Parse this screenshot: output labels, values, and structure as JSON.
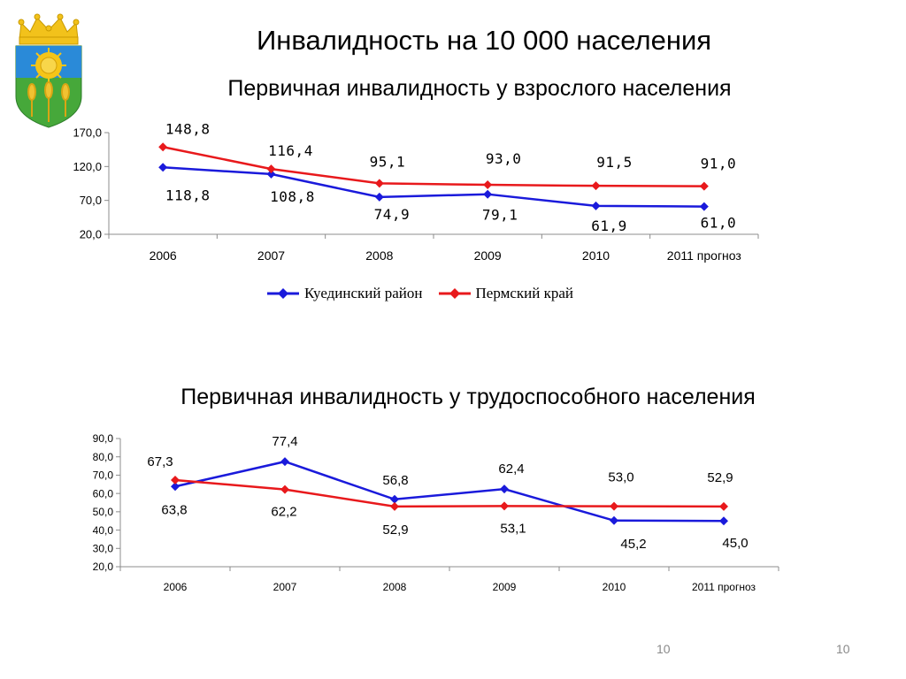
{
  "slide": {
    "title": "Инвалидность на 10 000 населения",
    "page_number_left": "10",
    "page_number_right": "10"
  },
  "legend": {
    "series1": "Куединский район",
    "series2": "Пермский край"
  },
  "colors": {
    "series1": "#1a1adb",
    "series2": "#e8191c",
    "axis": "#8c8c8c"
  },
  "emblem": {
    "icon": "coat-of-arms-icon"
  },
  "chart_data": [
    {
      "type": "line",
      "title": "Первичная инвалидность у взрослого населения",
      "categories": [
        "2006",
        "2007",
        "2008",
        "2009",
        "2010",
        "2011 прогноз"
      ],
      "ylim": [
        20,
        170
      ],
      "yticks": [
        "20,0",
        "70,0",
        "120,0",
        "170,0"
      ],
      "grid": false,
      "legend_position": "bottom",
      "series": [
        {
          "name": "Куединский район",
          "values": [
            118.8,
            108.8,
            74.9,
            79.1,
            61.9,
            61.0
          ],
          "labels": [
            "118,8",
            "108,8",
            "74,9",
            "79,1",
            "61,9",
            "61,0"
          ]
        },
        {
          "name": "Пермский край",
          "values": [
            148.8,
            116.4,
            95.1,
            93.0,
            91.5,
            91.0
          ],
          "labels": [
            "148,8",
            "116,4",
            "95,1",
            "93,0",
            "91,5",
            "91,0"
          ]
        }
      ]
    },
    {
      "type": "line",
      "title": "Первичная инвалидность у трудоспособного населения",
      "categories": [
        "2006",
        "2007",
        "2008",
        "2009",
        "2010",
        "2011 прогноз"
      ],
      "ylim": [
        20,
        90
      ],
      "yticks": [
        "20,0",
        "30,0",
        "40,0",
        "50,0",
        "60,0",
        "70,0",
        "80,0",
        "90,0"
      ],
      "grid": false,
      "legend_position": "none",
      "series": [
        {
          "name": "Куединский район",
          "values": [
            63.8,
            77.4,
            56.8,
            62.4,
            45.2,
            45.0
          ],
          "labels": [
            "63,8",
            "77,4",
            "56,8",
            "62,4",
            "45,2",
            "45,0"
          ]
        },
        {
          "name": "Пермский край",
          "values": [
            67.3,
            62.2,
            52.9,
            53.1,
            53.0,
            52.9
          ],
          "labels": [
            "67,3",
            "62,2",
            "52,9",
            "53,1",
            "53,0",
            "52,9"
          ]
        }
      ]
    }
  ]
}
